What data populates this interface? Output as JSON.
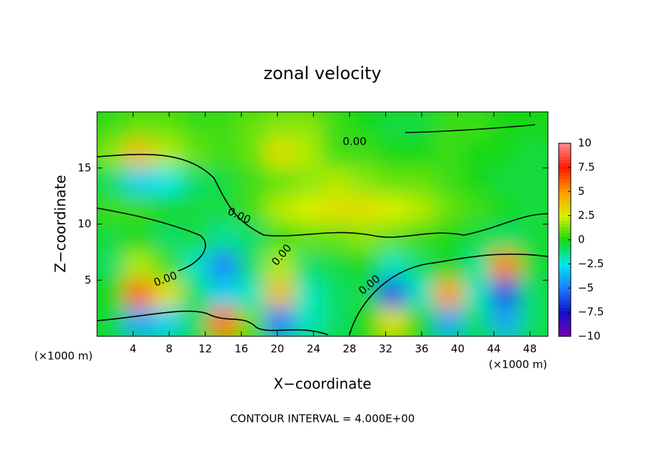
{
  "chart_data": {
    "type": "contour",
    "title": "zonal velocity",
    "xlabel": "X−coordinate",
    "ylabel": "Z−coordinate",
    "x_unit": "(×1000 m)",
    "y_unit": "(×1000 m)",
    "footer": "CONTOUR INTERVAL = 4.000E+00",
    "xlim": [
      0,
      50
    ],
    "ylim": [
      0,
      20
    ],
    "xticks": [
      4,
      8,
      12,
      16,
      20,
      24,
      28,
      32,
      36,
      40,
      44,
      48
    ],
    "yticks": [
      5,
      10,
      15
    ],
    "clim": [
      -10,
      10
    ],
    "cticks": [
      10,
      7.5,
      5,
      2.5,
      0,
      {
        "value": -2.5,
        "label": "−2.5"
      },
      {
        "value": -5,
        "label": "−5"
      },
      {
        "value": -7.5,
        "label": "−7.5"
      },
      {
        "value": -10,
        "label": "−10"
      }
    ],
    "colors": [
      "#ff8a8a",
      "#ff1a00",
      "#ff9a00",
      "#d8f000",
      "#18d818",
      "#00e8e8",
      "#1e7bff",
      "#1010c8",
      "#7a00b0"
    ],
    "contour_labels": [
      "0.00",
      "0.00",
      "0.00",
      "0.00",
      "0.00"
    ],
    "z": [
      [
        0.5,
        1,
        1,
        0.5,
        0.5,
        1,
        1.5,
        1.5,
        0.5,
        0,
        -0.5,
        -0.5,
        0.5,
        0.5,
        0,
        0
      ],
      [
        1.5,
        4,
        2,
        1,
        0.5,
        1,
        3,
        2,
        0.5,
        0.5,
        0,
        0,
        0.5,
        0,
        0,
        -0.5
      ],
      [
        -1,
        -3,
        -2.5,
        -1,
        -0.5,
        0.5,
        1,
        1.5,
        2,
        1.5,
        1,
        1,
        0.5,
        0,
        -0.5,
        -0.5
      ],
      [
        0.5,
        0.5,
        0,
        -0.5,
        -0.5,
        0.5,
        2,
        2.5,
        3,
        3,
        2.5,
        2,
        1,
        0.5,
        0,
        -0.5
      ],
      [
        -0.5,
        0,
        -1,
        -0.5,
        -1.5,
        -1,
        0.5,
        1,
        1,
        1.5,
        1,
        0.5,
        0,
        -0.5,
        -1,
        -0.5
      ],
      [
        -1,
        2,
        0.5,
        -2,
        -5,
        -1,
        2,
        -1,
        -0.5,
        0,
        -2,
        -1,
        0,
        -1.5,
        5.5,
        -0.5
      ],
      [
        0,
        6,
        3,
        -1,
        -3,
        -2,
        4,
        -2,
        -1,
        -0.5,
        -6,
        -2,
        5,
        -2,
        -6,
        -1
      ],
      [
        -0.5,
        -4,
        -3,
        -1,
        6,
        1,
        -5,
        -2,
        -1,
        0,
        3,
        0,
        -4,
        -1,
        -4,
        -1
      ]
    ]
  }
}
